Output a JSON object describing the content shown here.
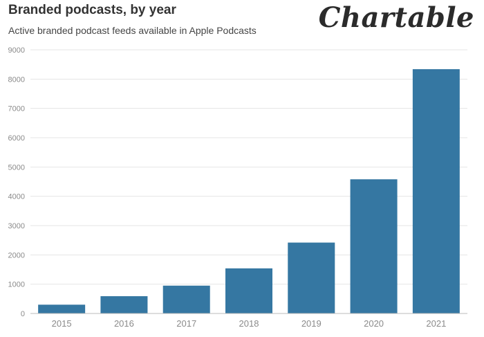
{
  "header": {
    "title": "Branded podcasts, by year",
    "subtitle": "Active branded podcast feeds available in Apple Podcasts",
    "logo_text": "Chartable"
  },
  "colors": {
    "bar": "#3577a2",
    "grid": "#e4e4e4",
    "axis": "#bbbbbb",
    "tick_text": "#8a8a8a"
  },
  "chart_data": {
    "type": "bar",
    "title": "Branded podcasts, by year",
    "subtitle": "Active branded podcast feeds available in Apple Podcasts",
    "xlabel": "",
    "ylabel": "",
    "categories": [
      "2015",
      "2016",
      "2017",
      "2018",
      "2019",
      "2020",
      "2021"
    ],
    "values": [
      300,
      590,
      950,
      1540,
      2420,
      4580,
      8340
    ],
    "ylim": [
      0,
      9000
    ],
    "yticks": [
      0,
      1000,
      2000,
      3000,
      4000,
      5000,
      6000,
      7000,
      8000,
      9000
    ],
    "grid": true,
    "legend": "none"
  }
}
